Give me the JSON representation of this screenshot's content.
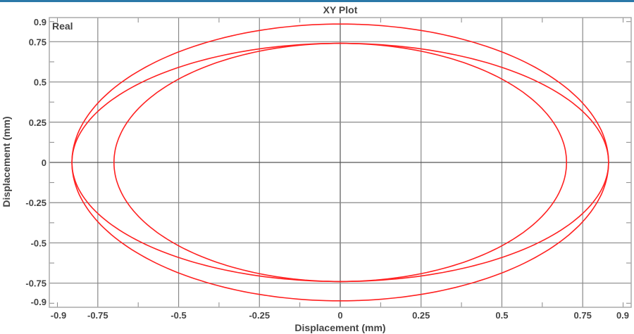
{
  "chart_data": {
    "type": "line",
    "title": "XY Plot",
    "xlabel": "Displacement (mm)",
    "ylabel": "Displacement (mm)",
    "annotation": "Real",
    "xlim": [
      -0.9,
      0.9
    ],
    "ylim": [
      -0.9,
      0.9
    ],
    "xticks": [
      -0.9,
      -0.75,
      -0.5,
      -0.25,
      0,
      0.25,
      0.5,
      0.75,
      0.9
    ],
    "xtick_labels": [
      "-0.9",
      "-0.75",
      "-0.5",
      "-0.25",
      "0",
      "0.25",
      "0.5",
      "0.75",
      "0.9"
    ],
    "yticks": [
      0.9,
      0.75,
      0.5,
      0.25,
      0,
      -0.25,
      -0.5,
      -0.75,
      -0.9
    ],
    "ytick_labels": [
      "0.9",
      "0.75",
      "0.5",
      "0.25",
      "0",
      "-0.25",
      "-0.5",
      "-0.75",
      "-0.9"
    ],
    "grid": true,
    "line_color": "#ff2020",
    "series": [
      {
        "shape": "ellipse",
        "center": [
          0,
          0
        ],
        "rx": 0.83,
        "ry": 0.86
      },
      {
        "shape": "ellipse",
        "center": [
          0,
          0
        ],
        "rx": 0.83,
        "ry": 0.74
      },
      {
        "shape": "ellipse",
        "center": [
          0,
          0
        ],
        "rx": 0.7,
        "ry": 0.74
      }
    ]
  }
}
